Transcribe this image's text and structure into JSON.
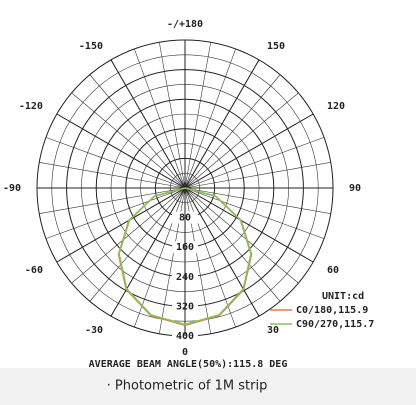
{
  "chart_data": {
    "type": "polar",
    "unit_label": "UNIT:cd",
    "footer": "AVERAGE BEAM ANGLE(50%):115.8 DEG",
    "caption": "· Photometric of 1M strip",
    "x": [
      -90,
      -75,
      -60,
      -45,
      -30,
      -15,
      0,
      15,
      30,
      45,
      60,
      75,
      90
    ],
    "series": [
      {
        "name": "C0/180,115.9",
        "color": "#e8764f",
        "values": [
          0,
          86,
          175,
          254,
          317,
          357,
          371,
          357,
          317,
          254,
          175,
          86,
          0
        ]
      },
      {
        "name": "C90/270,115.7",
        "color": "#86c25a",
        "values": [
          0,
          85,
          173,
          252,
          315,
          355,
          369,
          355,
          315,
          252,
          173,
          85,
          0
        ]
      }
    ],
    "rlim": [
      0,
      400
    ],
    "rticks": [
      80,
      160,
      240,
      320,
      400
    ],
    "thetaticks": [
      {
        "value": 180,
        "label": "-/+180"
      },
      -150,
      150,
      -120,
      120,
      -90,
      90,
      -60,
      60,
      -30,
      30,
      0
    ],
    "grid": true
  }
}
